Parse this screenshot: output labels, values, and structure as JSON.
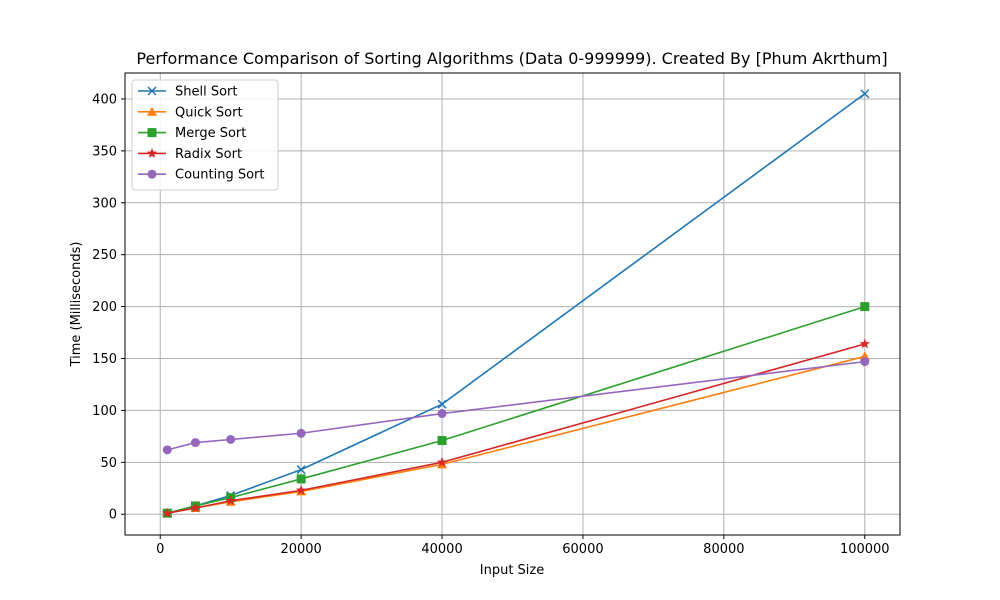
{
  "chart_data": {
    "type": "line",
    "title": "Performance Comparison of Sorting Algorithms (Data 0-999999). Created By [Phum Akrthum]",
    "xlabel": "Input Size",
    "ylabel": "Time (Milliseconds)",
    "x": [
      1000,
      5000,
      10000,
      20000,
      40000,
      100000
    ],
    "xlim": [
      -5000,
      105000
    ],
    "ylim": [
      -20,
      425
    ],
    "xticks": [
      0,
      20000,
      40000,
      60000,
      80000,
      100000
    ],
    "yticks": [
      0,
      50,
      100,
      150,
      200,
      250,
      300,
      350,
      400
    ],
    "grid": true,
    "legend_position": "top-left",
    "series": [
      {
        "name": "Shell Sort",
        "color": "#1f77b4",
        "marker": "x",
        "values": [
          1,
          8,
          18,
          43,
          106,
          405
        ]
      },
      {
        "name": "Quick Sort",
        "color": "#ff7f0e",
        "marker": "triangle",
        "values": [
          1,
          6,
          12,
          22,
          48,
          152
        ]
      },
      {
        "name": "Merge Sort",
        "color": "#2ca02c",
        "marker": "square",
        "values": [
          1,
          8,
          16,
          34,
          71,
          200
        ]
      },
      {
        "name": "Radix Sort",
        "color": "#d62728",
        "marker": "star",
        "values": [
          1,
          6,
          13,
          23,
          50,
          164
        ]
      },
      {
        "name": "Counting Sort",
        "color": "#9467bd",
        "marker": "circle",
        "values": [
          62,
          69,
          72,
          78,
          97,
          147
        ]
      }
    ]
  }
}
